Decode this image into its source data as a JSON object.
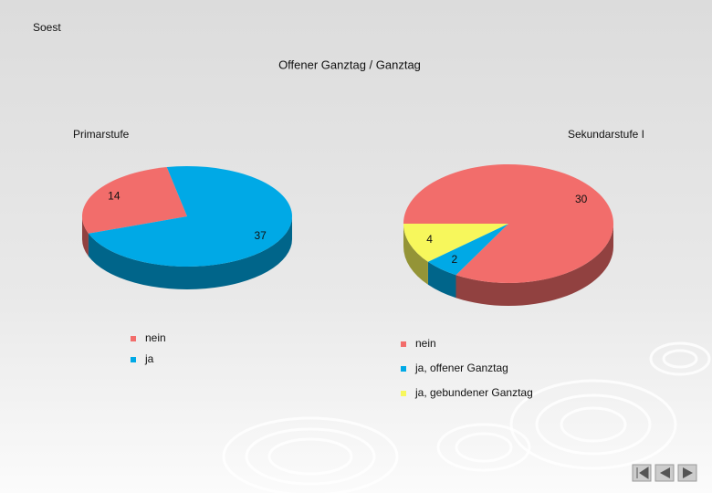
{
  "slide": {
    "header": "Soest",
    "title": "Offener Ganztag / Ganztag"
  },
  "chart_data": [
    {
      "type": "pie",
      "title": "Primarstufe",
      "categories": [
        "nein",
        "ja"
      ],
      "values": [
        14,
        37
      ],
      "colors": [
        "#f26d6b",
        "#00a9e6"
      ]
    },
    {
      "type": "pie",
      "title": "Sekundarstufe I",
      "categories": [
        "nein",
        "ja, offener Ganztag",
        "ja, gebundener Ganztag"
      ],
      "values": [
        30,
        2,
        4
      ],
      "colors": [
        "#f26d6b",
        "#00a9e6",
        "#f7f75c"
      ]
    }
  ]
}
